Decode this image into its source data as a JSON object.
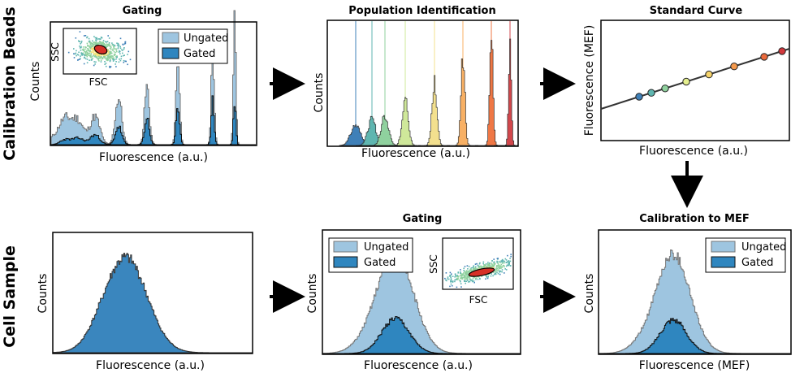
{
  "rows": {
    "beads": "Calibration Beads",
    "cells": "Cell Sample"
  },
  "panels": {
    "gating_beads": {
      "title": "Gating",
      "xlabel": "Fluorescence (a.u.)",
      "ylabel": "Counts",
      "legend": [
        "Ungated",
        "Gated"
      ],
      "inset": {
        "xlabel": "FSC",
        "ylabel": "SSC"
      }
    },
    "population": {
      "title": "Population Identification",
      "xlabel": "Fluorescence (a.u.)",
      "ylabel": "Counts"
    },
    "standard_curve": {
      "title": "Standard Curve",
      "xlabel": "Fluorescence (a.u.)",
      "ylabel": "Fluorescence (MEF)"
    },
    "cell_raw": {
      "xlabel": "Fluorescence (a.u.)",
      "ylabel": "Counts"
    },
    "gating_cells": {
      "title": "Gating",
      "xlabel": "Fluorescence (a.u.)",
      "ylabel": "Counts",
      "legend": [
        "Ungated",
        "Gated"
      ],
      "inset": {
        "xlabel": "FSC",
        "ylabel": "SSC"
      }
    },
    "calibration": {
      "title": "Calibration to MEF",
      "xlabel": "Fluorescence (MEF)",
      "ylabel": "Counts",
      "legend": [
        "Ungated",
        "Gated"
      ]
    }
  },
  "colors": {
    "ungated": "#9ec5e0",
    "gated": "#2f86bf",
    "axis": "#000000",
    "arrow": "#000000",
    "gate": "#d73027"
  },
  "population_colors": [
    "#3f80b8",
    "#5fb6b0",
    "#8fd19e",
    "#cfe89a",
    "#f3e08e",
    "#f8b064",
    "#ef7745",
    "#d2474c"
  ],
  "standard_curve_points": [
    {
      "color": "#3f80b8"
    },
    {
      "color": "#5fb6b0"
    },
    {
      "color": "#8fd19e"
    },
    {
      "color": "#e5ef8f"
    },
    {
      "color": "#f6d36a"
    },
    {
      "color": "#f59a4d"
    },
    {
      "color": "#ea6a3c"
    },
    {
      "color": "#d2383c"
    }
  ]
}
